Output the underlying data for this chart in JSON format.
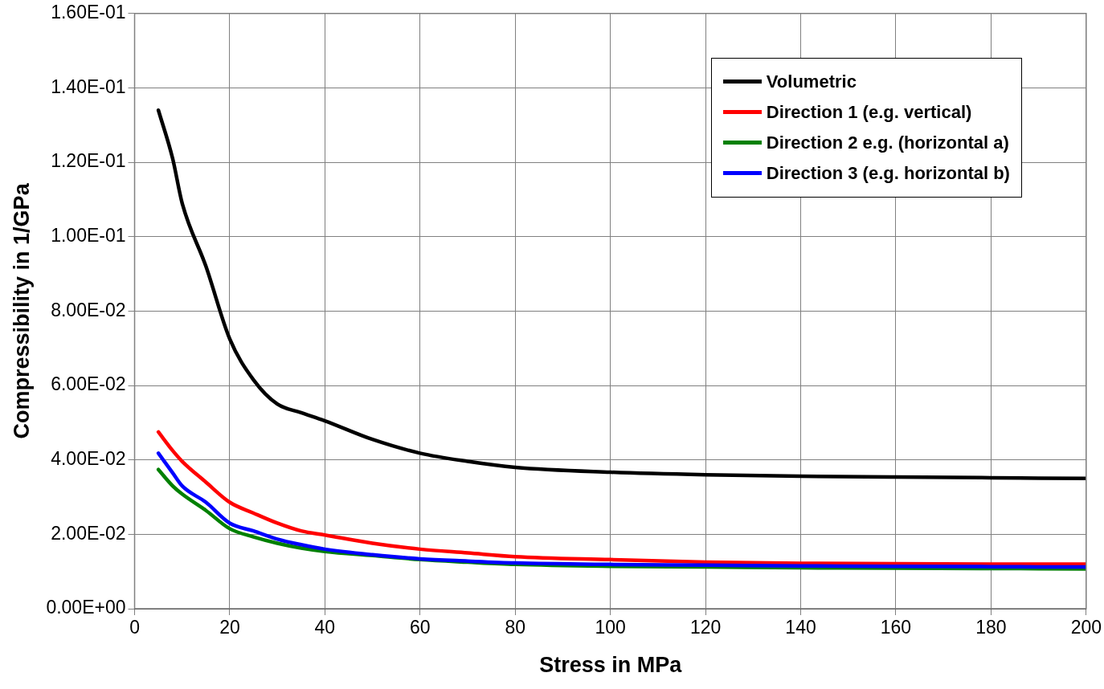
{
  "chart_data": {
    "type": "line",
    "xlabel": "Stress in MPa",
    "ylabel": "Compressibility in 1/GPa",
    "x": [
      5,
      8,
      10,
      15,
      20,
      25,
      30,
      35,
      40,
      50,
      60,
      70,
      80,
      100,
      120,
      140,
      160,
      180,
      200
    ],
    "series": [
      {
        "name": "Volumetric",
        "color": "#000000",
        "values": [
          0.134,
          0.121,
          0.109,
          0.092,
          0.0725,
          0.0615,
          0.055,
          0.0527,
          0.0505,
          0.0455,
          0.0418,
          0.0396,
          0.038,
          0.0367,
          0.036,
          0.0356,
          0.0354,
          0.0352,
          0.035
        ]
      },
      {
        "name": "Direction 1 (e.g. vertical)",
        "color": "#ff0000",
        "values": [
          0.0475,
          0.0425,
          0.0396,
          0.034,
          0.0286,
          0.0257,
          0.023,
          0.0209,
          0.0198,
          0.0176,
          0.016,
          0.015,
          0.014,
          0.0132,
          0.0125,
          0.0122,
          0.0121,
          0.012,
          0.012
        ]
      },
      {
        "name": "Direction 2 e.g. (horizontal a)",
        "color": "#008000",
        "values": [
          0.0374,
          0.033,
          0.0308,
          0.0264,
          0.0215,
          0.0193,
          0.0176,
          0.0163,
          0.0154,
          0.0143,
          0.0132,
          0.0125,
          0.0119,
          0.0114,
          0.0112,
          0.011,
          0.0109,
          0.0108,
          0.0107
        ]
      },
      {
        "name": "Direction 3 (e.g. horizontal b)",
        "color": "#0000ff",
        "values": [
          0.0418,
          0.0365,
          0.033,
          0.0286,
          0.023,
          0.0209,
          0.0187,
          0.0172,
          0.016,
          0.0145,
          0.0134,
          0.0128,
          0.0123,
          0.0119,
          0.0117,
          0.0115,
          0.0114,
          0.0113,
          0.0112
        ]
      }
    ],
    "xlim": [
      0,
      200
    ],
    "xticks": [
      0,
      20,
      40,
      60,
      80,
      100,
      120,
      140,
      160,
      180,
      200
    ],
    "ylim": [
      0,
      0.16
    ],
    "yticks": [
      {
        "value": 0,
        "label": "0.00E+00"
      },
      {
        "value": 0.02,
        "label": "2.00E-02"
      },
      {
        "value": 0.04,
        "label": "4.00E-02"
      },
      {
        "value": 0.06,
        "label": "6.00E-02"
      },
      {
        "value": 0.08,
        "label": "8.00E-02"
      },
      {
        "value": 0.1,
        "label": "1.00E-01"
      },
      {
        "value": 0.12,
        "label": "1.20E-01"
      },
      {
        "value": 0.14,
        "label": "1.40E-01"
      },
      {
        "value": 0.16,
        "label": "1.60E-01"
      }
    ],
    "grid": true,
    "legend": "top right",
    "marker": "none",
    "line_style": "solid"
  }
}
